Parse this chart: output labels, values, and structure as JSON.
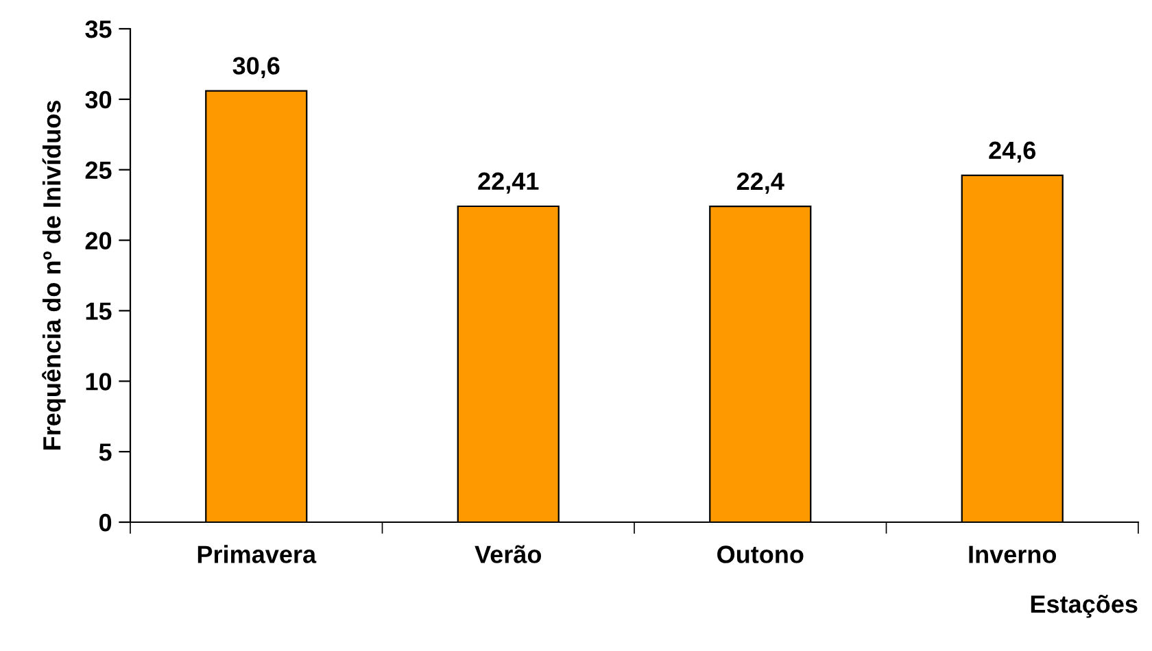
{
  "chart_data": {
    "type": "bar",
    "xlabel": "Estações",
    "ylabel": "Frequência do nº de Inivíduos",
    "categories": [
      "Primavera",
      "Verão",
      "Outono",
      "Inverno"
    ],
    "values": [
      30.6,
      22.41,
      22.4,
      24.6
    ],
    "color": "#ff9900",
    "value_labels": [
      "30,6",
      "22,41",
      "22,4",
      "24,6"
    ],
    "ylim": [
      0,
      35
    ],
    "yticks": [
      0,
      5,
      10,
      15,
      20,
      25,
      30,
      35
    ],
    "grid": false,
    "legend": false
  }
}
